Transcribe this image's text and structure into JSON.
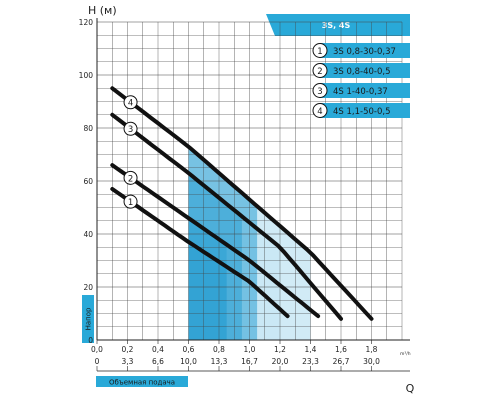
{
  "chart_data": {
    "type": "line",
    "header_tag": "3S, 4S",
    "ylabel": "H (м)",
    "xlabel": "Q",
    "x_unit": "m³/h",
    "y_axis_caption": "Напор",
    "x_axis_caption": "Объемная подача",
    "ylim": [
      0,
      120
    ],
    "y_ticks": [
      "0",
      "20",
      "40",
      "60",
      "80",
      "100",
      "120"
    ],
    "xlim": [
      0,
      2.0
    ],
    "x_ticks_top": [
      "0,0",
      "0,2",
      "0,4",
      "0,6",
      "0,8",
      "1,0",
      "1,2",
      "1,4",
      "1,6",
      "1,8"
    ],
    "x_ticks_bottom": [
      "0",
      "3,3",
      "6,6",
      "10,0",
      "13,3",
      "16,7",
      "20,0",
      "23,3",
      "26,7",
      "30,0"
    ],
    "grid": true,
    "legend_position": "top-right",
    "colors": {
      "header": "#29a9d8",
      "curve": "#111111",
      "fill_light": "#c9e7f5",
      "fill_dark": "#2ea1d3",
      "grid": "#444444"
    },
    "series": [
      {
        "name": "3S 0,8-30-0,37",
        "marker": "1",
        "x": [
          0.1,
          0.6,
          1.0,
          1.25
        ],
        "y": [
          57,
          37,
          22,
          9
        ],
        "band": [
          0.6,
          1.0
        ]
      },
      {
        "name": "3S 0,8-40-0,5",
        "marker": "2",
        "x": [
          0.1,
          0.6,
          1.0,
          1.45
        ],
        "y": [
          66,
          46,
          30,
          9
        ],
        "band": [
          0.6,
          1.0
        ]
      },
      {
        "name": "4S 1-40-0,37",
        "marker": "3",
        "x": [
          0.1,
          0.6,
          1.2,
          1.6
        ],
        "y": [
          85,
          63,
          35,
          8
        ],
        "band": [
          0.6,
          1.2
        ]
      },
      {
        "name": "4S 1,1-50-0,5",
        "marker": "4",
        "x": [
          0.1,
          0.6,
          1.4,
          1.8
        ],
        "y": [
          95,
          73,
          33,
          8
        ],
        "band": [
          0.6,
          1.4
        ]
      }
    ]
  }
}
